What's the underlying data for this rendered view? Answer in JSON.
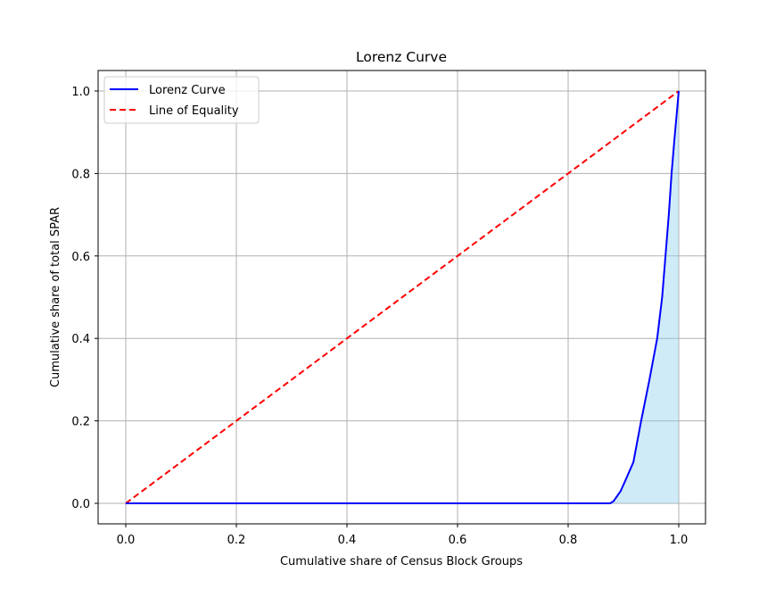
{
  "chart_data": {
    "type": "line",
    "title": "Lorenz Curve",
    "xlabel": "Cumulative share of Census Block Groups",
    "ylabel": "Cumulative share of total SPAR",
    "xlim": [
      -0.05,
      1.05
    ],
    "ylim": [
      -0.05,
      1.05
    ],
    "grid": true,
    "legend_position": "upper left",
    "x_ticks": [
      "0.0",
      "0.2",
      "0.4",
      "0.6",
      "0.8",
      "1.0"
    ],
    "y_ticks": [
      "0.0",
      "0.2",
      "0.4",
      "0.6",
      "0.8",
      "1.0"
    ],
    "series": [
      {
        "name": "Lorenz Curve",
        "color": "#0000ff",
        "style": "solid",
        "fill_between": {
          "color": "#87ceeb",
          "alpha": 0.4
        },
        "x": [
          0.0,
          0.2,
          0.4,
          0.6,
          0.8,
          0.876,
          0.882,
          0.895,
          0.905,
          0.918,
          0.932,
          0.947,
          0.961,
          0.97,
          0.976,
          0.982,
          0.987,
          0.992,
          0.996,
          1.0
        ],
        "y": [
          0.0,
          0.0,
          0.0,
          0.0,
          0.0,
          0.0,
          0.005,
          0.03,
          0.06,
          0.1,
          0.2,
          0.3,
          0.4,
          0.5,
          0.6,
          0.7,
          0.8,
          0.88,
          0.94,
          1.0
        ]
      },
      {
        "name": "Line of Equality",
        "color": "#ff0000",
        "style": "dashed",
        "x": [
          0.0,
          1.0
        ],
        "y": [
          0.0,
          1.0
        ]
      }
    ]
  },
  "labels": {
    "title": "Lorenz Curve",
    "xlabel": "Cumulative share of Census Block Groups",
    "ylabel": "Cumulative share of total SPAR",
    "legend": [
      "Lorenz Curve",
      "Line of Equality"
    ]
  }
}
